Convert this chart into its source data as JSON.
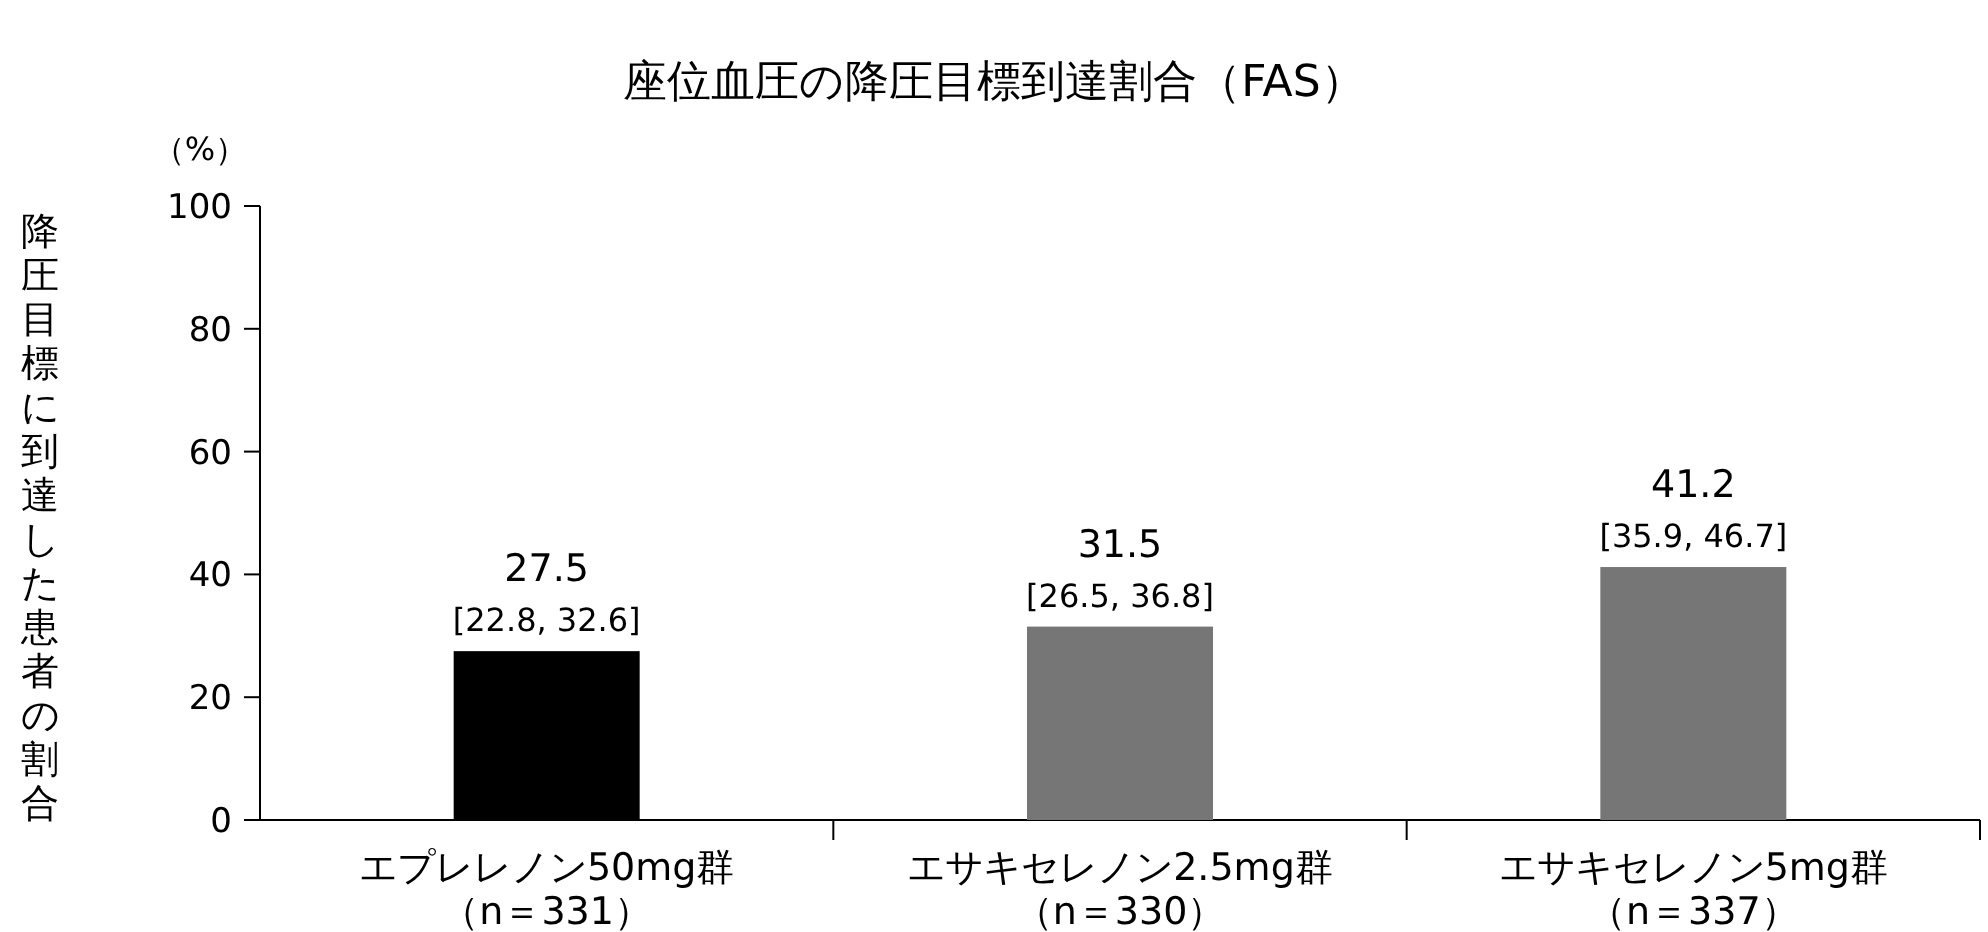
{
  "chart_data": {
    "type": "bar",
    "title": "座位血圧の降圧目標到達割合（FAS）",
    "ylabel": "降圧目標に到達した患者の割合",
    "annotations": [
      "（%）"
    ],
    "categories": [
      "エプレレノン50mg群（n＝331）",
      "エサキセレノン2.5mg群（n＝330）",
      "エサキセレノン5mg群（n＝337）"
    ],
    "values": [
      27.5,
      31.5,
      41.2
    ],
    "colors": [
      "#000000",
      "#767676",
      "#767676"
    ],
    "value_labels": [
      "27.5\n[22.8, 32.6]",
      "31.5\n[26.5, 36.8]",
      "41.2\n[35.9, 46.7]"
    ],
    "ylim": [
      0,
      100
    ],
    "yticks": [
      0,
      20,
      40,
      60,
      80,
      100
    ],
    "grid": false
  }
}
